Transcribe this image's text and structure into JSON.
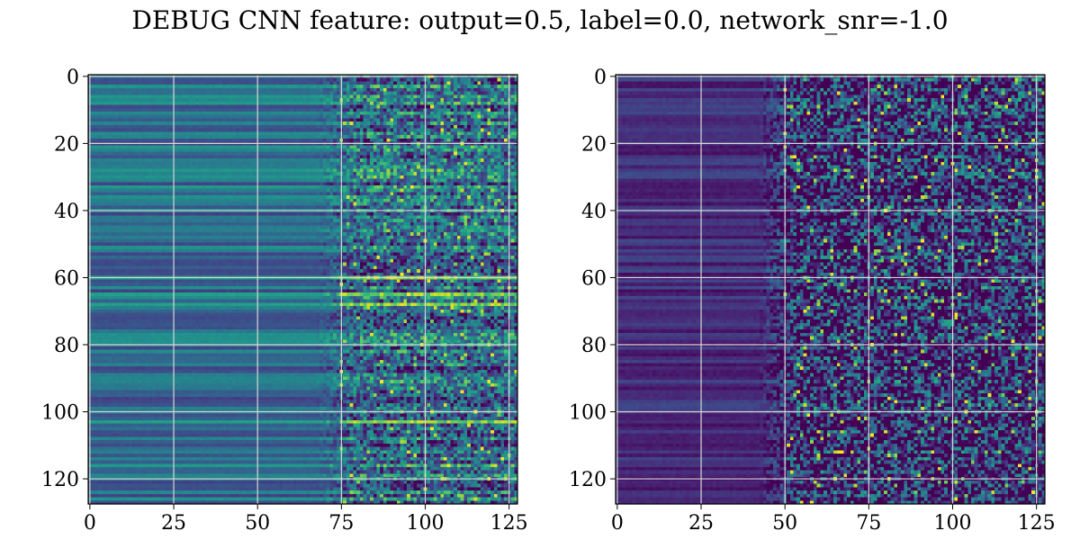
{
  "figure": {
    "title": "DEBUG CNN feature: output=0.5, label=0.0, network_snr=-1.0"
  },
  "chart_data": [
    {
      "type": "heatmap",
      "colormap": "viridis",
      "rows": 128,
      "cols": 128,
      "xlim": [
        0,
        127
      ],
      "ylim": [
        127,
        0
      ],
      "xticks": [
        0,
        25,
        50,
        75,
        100,
        125
      ],
      "yticks": [
        0,
        20,
        40,
        60,
        80,
        100,
        120
      ],
      "grid": true,
      "row_level_range": [
        0.18,
        0.55
      ],
      "bright_rows": [
        60,
        65,
        68,
        103
      ],
      "bright_row_level": 0.8,
      "noise_start_col": 75,
      "noise_low_amplitude": 0.02,
      "noise_high_amplitude": 0.3,
      "seed": 17
    },
    {
      "type": "heatmap",
      "colormap": "viridis",
      "rows": 128,
      "cols": 128,
      "xlim": [
        0,
        127
      ],
      "ylim": [
        127,
        0
      ],
      "xticks": [
        0,
        25,
        50,
        75,
        100,
        125
      ],
      "yticks": [
        0,
        20,
        40,
        60,
        80,
        100,
        120
      ],
      "grid": true,
      "row_level_range": [
        0.04,
        0.22
      ],
      "bright_rows": [],
      "bright_row_level": 0.0,
      "noise_start_col": 50,
      "noise_low_amplitude": 0.02,
      "noise_high_amplitude": 0.45,
      "seed": 91
    }
  ]
}
